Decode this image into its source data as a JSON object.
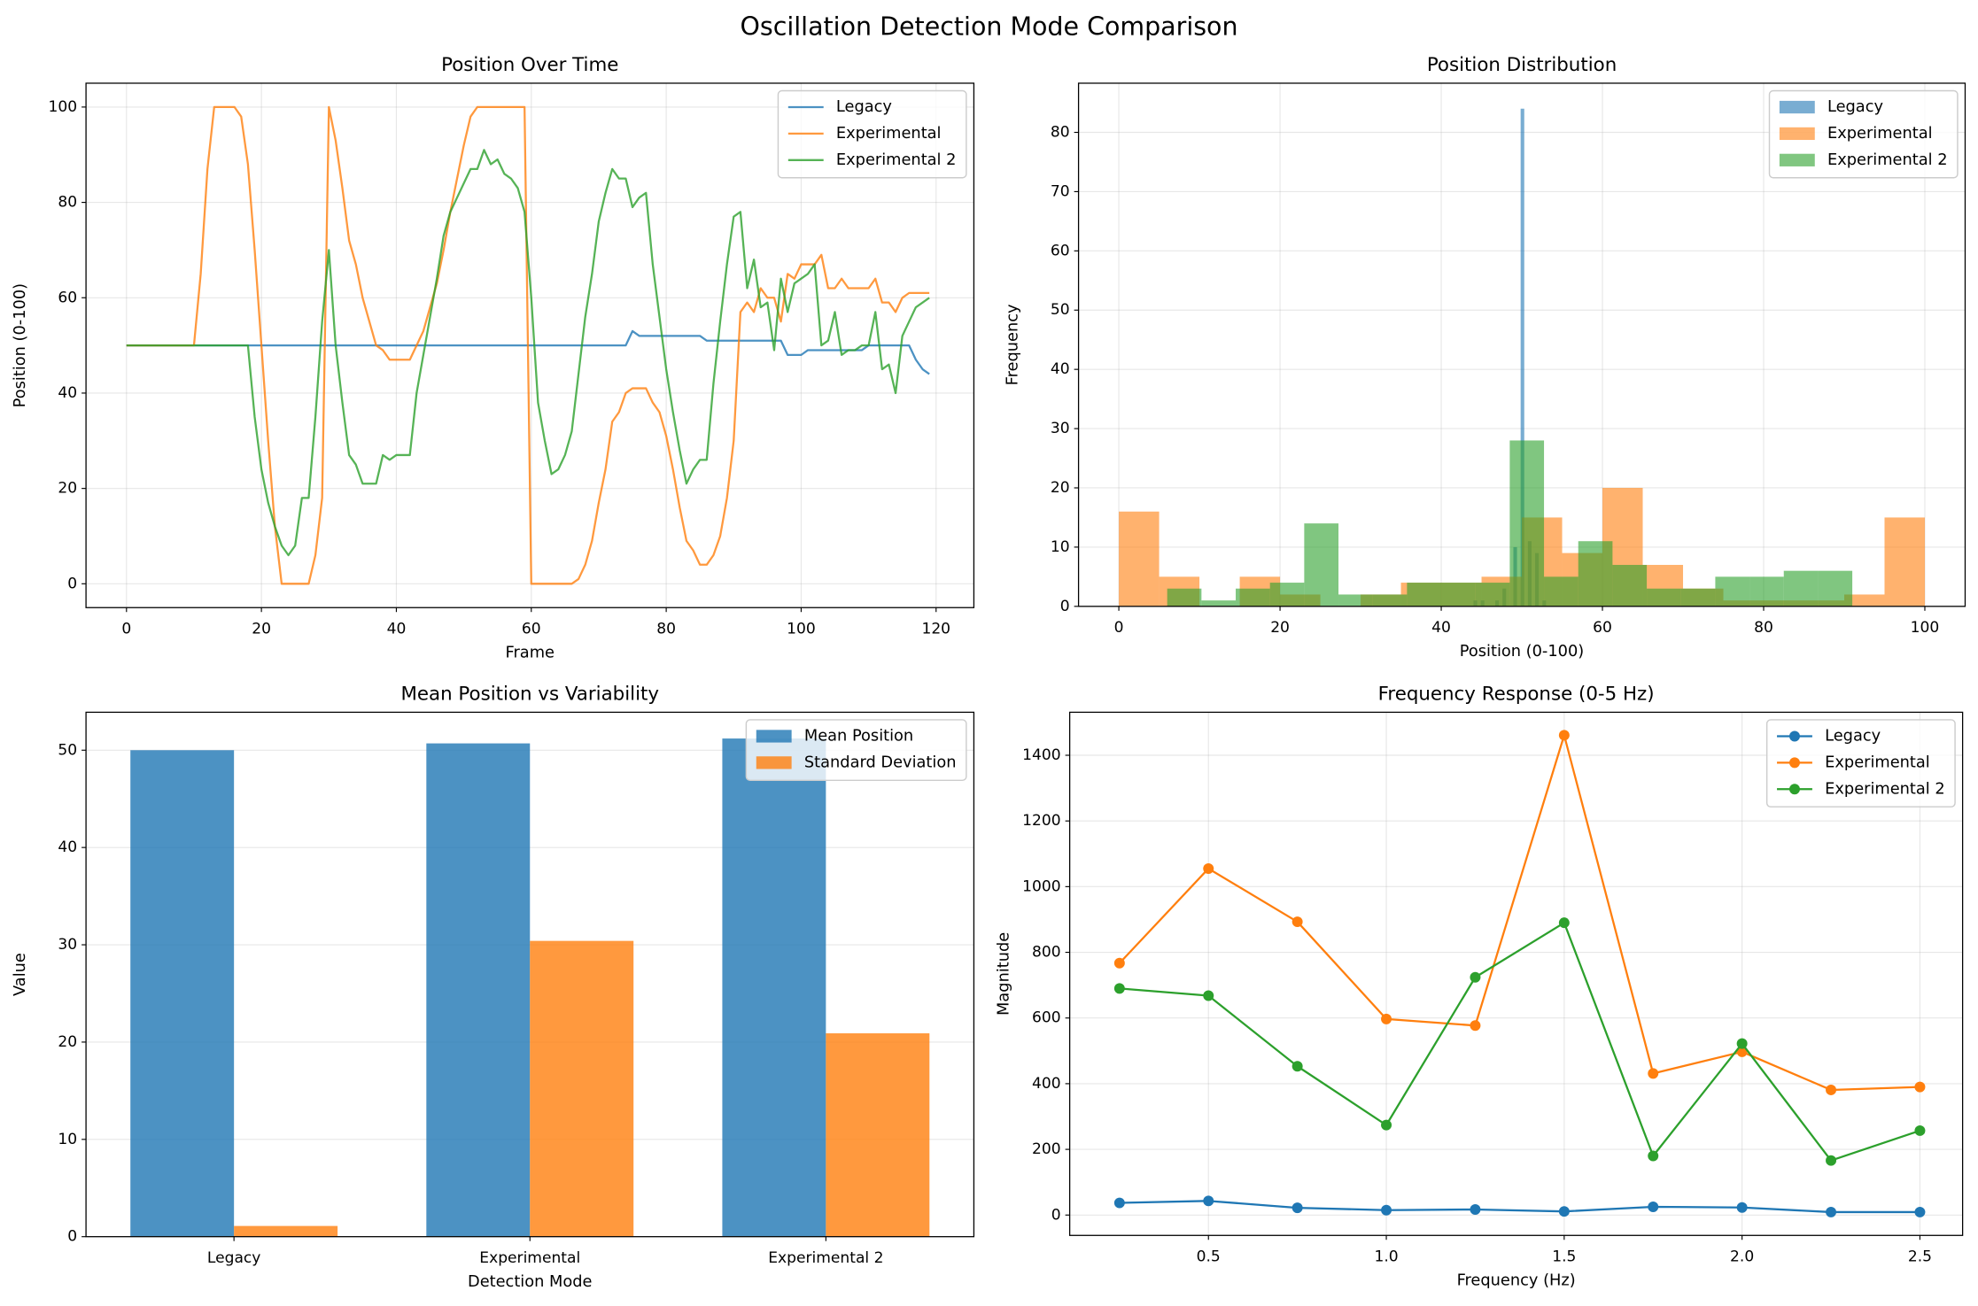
{
  "title": "Oscillation Detection Mode Comparison",
  "chart_data": [
    {
      "type": "line",
      "title": "Position Over Time",
      "x_label": "Frame",
      "y_label": "Position (0-100)",
      "x": [
        0,
        1,
        2,
        3,
        4,
        5,
        6,
        7,
        8,
        9,
        10,
        11,
        12,
        13,
        14,
        15,
        16,
        17,
        18,
        19,
        20,
        21,
        22,
        23,
        24,
        25,
        26,
        27,
        28,
        29,
        30,
        31,
        32,
        33,
        34,
        35,
        36,
        37,
        38,
        39,
        40,
        41,
        42,
        43,
        44,
        45,
        46,
        47,
        48,
        49,
        50,
        51,
        52,
        53,
        54,
        55,
        56,
        57,
        58,
        59,
        60,
        61,
        62,
        63,
        64,
        65,
        66,
        67,
        68,
        69,
        70,
        71,
        72,
        73,
        74,
        75,
        76,
        77,
        78,
        79,
        80,
        81,
        82,
        83,
        84,
        85,
        86,
        87,
        88,
        89,
        90,
        91,
        92,
        93,
        94,
        95,
        96,
        97,
        98,
        99,
        100,
        101,
        102,
        103,
        104,
        105,
        106,
        107,
        108,
        109,
        110,
        111,
        112,
        113,
        114,
        115,
        116,
        117,
        118,
        119
      ],
      "series": [
        {
          "name": "Legacy",
          "color": "#1f77b4",
          "values": [
            50,
            50,
            50,
            50,
            50,
            50,
            50,
            50,
            50,
            50,
            50,
            50,
            50,
            50,
            50,
            50,
            50,
            50,
            50,
            50,
            50,
            50,
            50,
            50,
            50,
            50,
            50,
            50,
            50,
            50,
            50,
            50,
            50,
            50,
            50,
            50,
            50,
            50,
            50,
            50,
            50,
            50,
            50,
            50,
            50,
            50,
            50,
            50,
            50,
            50,
            50,
            50,
            50,
            50,
            50,
            50,
            50,
            50,
            50,
            50,
            50,
            50,
            50,
            50,
            50,
            50,
            50,
            50,
            50,
            50,
            50,
            50,
            50,
            50,
            50,
            53,
            52,
            52,
            52,
            52,
            52,
            52,
            52,
            52,
            52,
            52,
            51,
            51,
            51,
            51,
            51,
            51,
            51,
            51,
            51,
            51,
            51,
            51,
            48,
            48,
            48,
            49,
            49,
            49,
            49,
            49,
            49,
            49,
            49,
            49,
            50,
            50,
            50,
            50,
            50,
            50,
            50,
            47,
            45,
            44
          ]
        },
        {
          "name": "Experimental",
          "color": "#ff7f0e",
          "values": [
            50,
            50,
            50,
            50,
            50,
            50,
            50,
            50,
            50,
            50,
            50,
            65,
            87,
            100,
            100,
            100,
            100,
            98,
            88,
            70,
            50,
            30,
            12,
            0,
            0,
            0,
            0,
            0,
            6,
            18,
            100,
            93,
            83,
            72,
            67,
            60,
            55,
            50,
            49,
            47,
            47,
            47,
            47,
            50,
            53,
            58,
            63,
            70,
            78,
            85,
            92,
            98,
            100,
            100,
            100,
            100,
            100,
            100,
            100,
            100,
            0,
            0,
            0,
            0,
            0,
            0,
            0,
            1,
            4,
            9,
            17,
            24,
            34,
            36,
            40,
            41,
            41,
            41,
            38,
            36,
            31,
            24,
            16,
            9,
            7,
            4,
            4,
            6,
            10,
            18,
            30,
            57,
            59,
            57,
            62,
            60,
            60,
            55,
            65,
            64,
            67,
            67,
            67,
            69,
            62,
            62,
            64,
            62,
            62,
            62,
            62,
            64,
            59,
            59,
            57,
            60,
            61,
            61,
            61,
            61
          ]
        },
        {
          "name": "Experimental 2",
          "color": "#2ca02c",
          "values": [
            50,
            50,
            50,
            50,
            50,
            50,
            50,
            50,
            50,
            50,
            50,
            50,
            50,
            50,
            50,
            50,
            50,
            50,
            50,
            35,
            24,
            17,
            12,
            8,
            6,
            8,
            18,
            18,
            35,
            55,
            70,
            50,
            38,
            27,
            25,
            21,
            21,
            21,
            27,
            26,
            27,
            27,
            27,
            40,
            48,
            56,
            64,
            73,
            78,
            81,
            84,
            87,
            87,
            91,
            88,
            89,
            86,
            85,
            83,
            78,
            60,
            38,
            30,
            23,
            24,
            27,
            32,
            44,
            56,
            65,
            76,
            82,
            87,
            85,
            85,
            79,
            81,
            82,
            67,
            56,
            45,
            36,
            28,
            21,
            24,
            26,
            26,
            42,
            55,
            67,
            77,
            78,
            62,
            68,
            58,
            59,
            49,
            64,
            57,
            63,
            64,
            65,
            67,
            50,
            51,
            57,
            48,
            49,
            49,
            50,
            50,
            57,
            45,
            46,
            40,
            52,
            55,
            58,
            59,
            60
          ]
        }
      ],
      "xlim": [
        -6,
        125.6
      ],
      "xticks": [
        0,
        20,
        40,
        60,
        80,
        100,
        120
      ],
      "ylim": [
        -5,
        105
      ],
      "yticks": [
        0,
        20,
        40,
        60,
        80,
        100
      ],
      "grid": true,
      "legend": "upper right",
      "alpha": 0.8
    },
    {
      "type": "histogram",
      "title": "Position Distribution",
      "x_label": "Position (0-100)",
      "y_label": "Frequency",
      "series": [
        {
          "name": "Legacy",
          "color": "#1f77b4",
          "bins": [
            44,
            44.45,
            44.9,
            45.35,
            45.8,
            46.25,
            46.7,
            47.15,
            47.6,
            48.05,
            48.5,
            48.95,
            49.4,
            49.85,
            50.3,
            50.75,
            51.2,
            51.65,
            52.1,
            52.55,
            53
          ],
          "values": [
            1,
            0,
            1,
            0,
            0,
            0,
            1,
            0,
            3,
            0,
            0,
            10,
            0,
            84,
            0,
            11,
            0,
            9,
            0,
            1
          ]
        },
        {
          "name": "Experimental",
          "color": "#ff7f0e",
          "bins": [
            0,
            5,
            10,
            15,
            20,
            25,
            30,
            35,
            40,
            45,
            50,
            55,
            60,
            65,
            70,
            75,
            80,
            85,
            90,
            95,
            100
          ],
          "values": [
            16,
            5,
            0,
            5,
            2,
            0,
            2,
            4,
            4,
            5,
            15,
            9,
            20,
            7,
            3,
            1,
            1,
            1,
            2,
            15
          ]
        },
        {
          "name": "Experimental 2",
          "color": "#2ca02c",
          "bins": [
            6,
            10.25,
            14.5,
            18.75,
            23,
            27.25,
            31.5,
            35.75,
            40,
            44.25,
            48.5,
            52.75,
            57,
            61.25,
            65.5,
            69.75,
            74,
            78.25,
            82.5,
            86.75,
            91
          ],
          "values": [
            3,
            1,
            3,
            4,
            14,
            2,
            2,
            4,
            4,
            4,
            28,
            5,
            11,
            7,
            3,
            3,
            5,
            5,
            6,
            6
          ]
        }
      ],
      "xlim": [
        -5,
        105
      ],
      "xticks": [
        0,
        20,
        40,
        60,
        80,
        100
      ],
      "ylim": [
        0,
        88.3
      ],
      "yticks": [
        0,
        10,
        20,
        30,
        40,
        50,
        60,
        70,
        80
      ],
      "grid": true,
      "legend": "upper right",
      "alpha": 0.6
    },
    {
      "type": "bar",
      "title": "Mean Position vs Variability",
      "x_label": "Detection Mode",
      "y_label": "Value",
      "categories": [
        "Legacy",
        "Experimental",
        "Experimental 2"
      ],
      "series": [
        {
          "name": "Mean Position",
          "color": "#1f77b4",
          "values": [
            50,
            50.7,
            51.2
          ]
        },
        {
          "name": "Standard Deviation",
          "color": "#ff7f0e",
          "values": [
            1.1,
            30.4,
            20.9
          ]
        }
      ],
      "ylim": [
        0,
        53.9
      ],
      "yticks": [
        0,
        10,
        20,
        30,
        40,
        50
      ],
      "grid": "y",
      "legend": "upper right",
      "alpha": 0.8
    },
    {
      "type": "line",
      "title": "Frequency Response (0-5 Hz)",
      "x_label": "Frequency (Hz)",
      "y_label": "Magnitude",
      "x": [
        0.25,
        0.5,
        0.75,
        1.0,
        1.25,
        1.5,
        1.75,
        2.0,
        2.25,
        2.5
      ],
      "series": [
        {
          "name": "Legacy",
          "color": "#1f77b4",
          "values": [
            37,
            43,
            22,
            15,
            17,
            11,
            25,
            23,
            9,
            9
          ]
        },
        {
          "name": "Experimental",
          "color": "#ff7f0e",
          "values": [
            767,
            1055,
            893,
            597,
            577,
            1461,
            431,
            497,
            381,
            390
          ]
        },
        {
          "name": "Experimental 2",
          "color": "#2ca02c",
          "values": [
            690,
            668,
            453,
            274,
            724,
            890,
            180,
            522,
            166,
            257
          ]
        }
      ],
      "xlim": [
        0.11,
        2.62
      ],
      "xticks": [
        {
          "value": 0.5,
          "label": "0.5"
        },
        {
          "value": 1,
          "label": "1.0"
        },
        {
          "value": 1.5,
          "label": "1.5"
        },
        {
          "value": 2,
          "label": "2.0"
        },
        {
          "value": 2.5,
          "label": "2.5"
        }
      ],
      "ylim": [
        -62,
        1531
      ],
      "yticks": [
        0,
        200,
        400,
        600,
        800,
        1000,
        1200,
        1400
      ],
      "grid": true,
      "legend": "upper right",
      "markers": true,
      "alpha": 1
    }
  ]
}
